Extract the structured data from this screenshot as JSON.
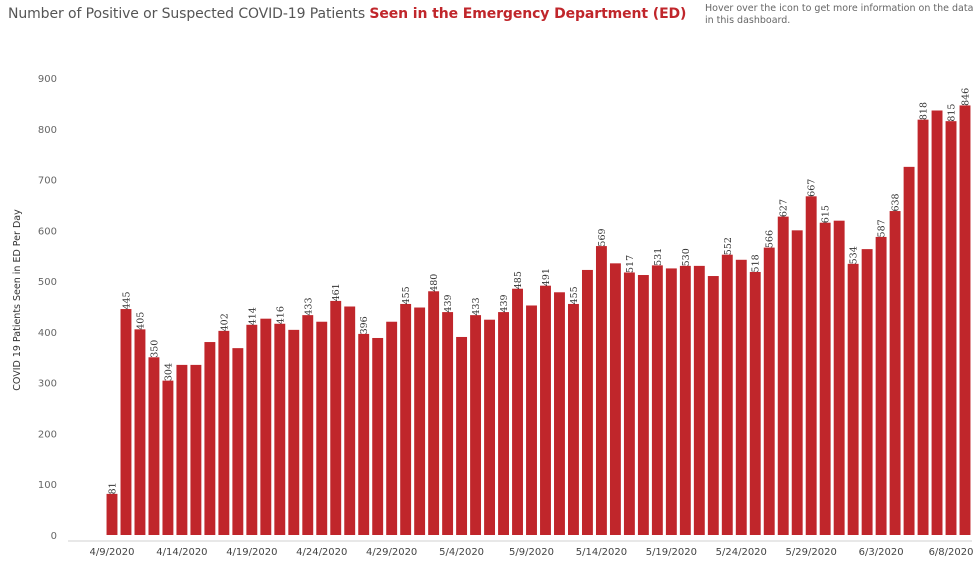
{
  "header": {
    "title_plain": "Number of Positive or Suspected COVID-19 Patients ",
    "title_accent": "Seen in the Emergency Department (ED)",
    "info_text": "Hover over the icon to get more information on the data in this dashboard."
  },
  "colors": {
    "bar": "#c0262b",
    "accent": "#c0262b"
  },
  "chart_data": {
    "type": "bar",
    "title": "Number of Positive or Suspected COVID-19 Patients Seen in the Emergency Department (ED)",
    "xlabel": "",
    "ylabel": "COVID 19 Patients Seen in ED Per Day",
    "ylim": [
      0,
      900
    ],
    "yticks": [
      0,
      100,
      200,
      300,
      400,
      500,
      600,
      700,
      800,
      900
    ],
    "grid": false,
    "x_tick_labels": [
      "4/9/2020",
      "4/14/2020",
      "4/19/2020",
      "4/24/2020",
      "4/29/2020",
      "5/4/2020",
      "5/9/2020",
      "5/14/2020",
      "5/19/2020",
      "5/24/2020",
      "5/29/2020",
      "6/3/2020",
      "6/8/2020"
    ],
    "categories": [
      "4/9/2020",
      "4/10/2020",
      "4/11/2020",
      "4/12/2020",
      "4/13/2020",
      "4/14/2020",
      "4/15/2020",
      "4/16/2020",
      "4/17/2020",
      "4/18/2020",
      "4/19/2020",
      "4/20/2020",
      "4/21/2020",
      "4/22/2020",
      "4/23/2020",
      "4/24/2020",
      "4/25/2020",
      "4/26/2020",
      "4/27/2020",
      "4/28/2020",
      "4/29/2020",
      "4/30/2020",
      "5/1/2020",
      "5/2/2020",
      "5/3/2020",
      "5/4/2020",
      "5/5/2020",
      "5/6/2020",
      "5/7/2020",
      "5/8/2020",
      "5/9/2020",
      "5/10/2020",
      "5/11/2020",
      "5/12/2020",
      "5/13/2020",
      "5/14/2020",
      "5/15/2020",
      "5/16/2020",
      "5/17/2020",
      "5/18/2020",
      "5/19/2020",
      "5/20/2020",
      "5/21/2020",
      "5/22/2020",
      "5/23/2020",
      "5/24/2020",
      "5/25/2020",
      "5/26/2020",
      "5/27/2020",
      "5/28/2020",
      "5/29/2020",
      "5/30/2020",
      "5/31/2020",
      "6/1/2020",
      "6/2/2020",
      "6/3/2020",
      "6/4/2020",
      "6/5/2020",
      "6/6/2020",
      "6/7/2020",
      "6/8/2020",
      "6/9/2020"
    ],
    "values": [
      81,
      445,
      405,
      350,
      304,
      335,
      335,
      380,
      402,
      368,
      414,
      426,
      416,
      404,
      433,
      420,
      461,
      450,
      396,
      388,
      420,
      455,
      448,
      480,
      439,
      390,
      433,
      424,
      439,
      485,
      452,
      491,
      478,
      455,
      522,
      569,
      535,
      517,
      512,
      531,
      525,
      530,
      530,
      510,
      552,
      542,
      518,
      566,
      627,
      600,
      667,
      615,
      619,
      534,
      563,
      587,
      638,
      725,
      818,
      836,
      815,
      846
    ],
    "data_labels": [
      "81",
      "445",
      "405",
      "350",
      "304",
      "",
      "",
      "",
      "402",
      "",
      "414",
      "",
      "416",
      "",
      "433",
      "",
      "461",
      "",
      "396",
      "",
      "",
      "455",
      "",
      "480",
      "439",
      "",
      "433",
      "",
      "439",
      "485",
      "",
      "491",
      "",
      "455",
      "",
      "569",
      "",
      "517",
      "",
      "531",
      "",
      "530",
      "",
      "",
      "552",
      "",
      "518",
      "566",
      "627",
      "",
      "667",
      "615",
      "",
      "534",
      "",
      "587",
      "638",
      "",
      "818",
      "",
      "815",
      "846"
    ]
  }
}
